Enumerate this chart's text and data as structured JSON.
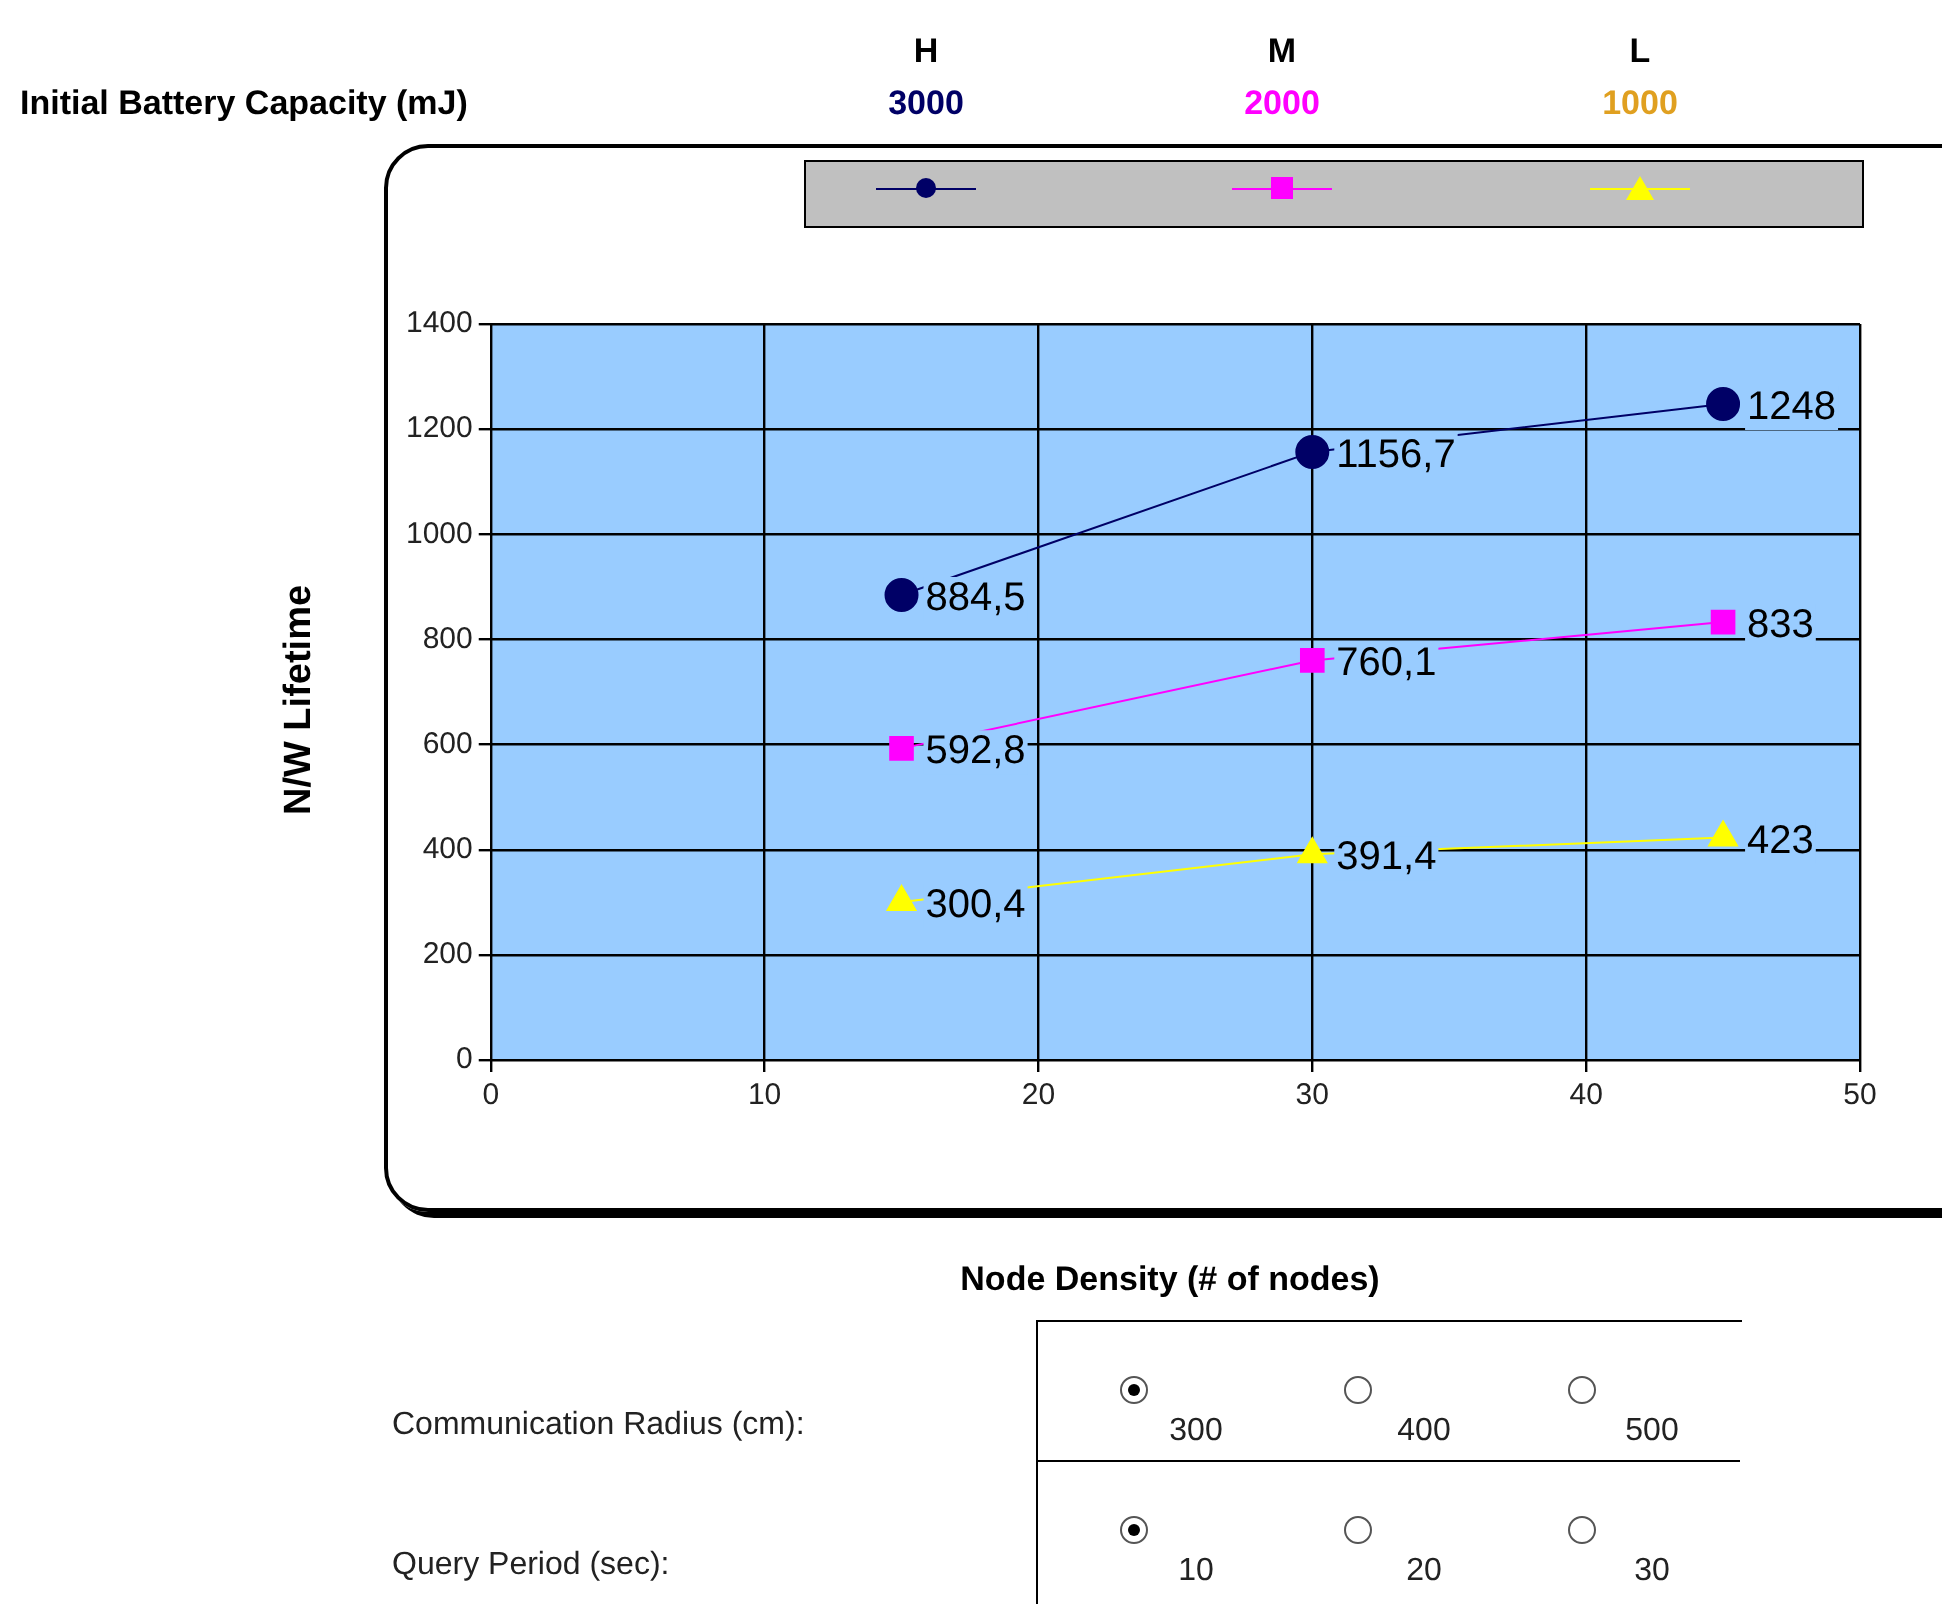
{
  "chart_data": {
    "type": "line",
    "xlabel": "Node Density (# of nodes)",
    "ylabel": "N/W Lifetime",
    "legend_title": "Initial Battery Capacity (mJ)",
    "grid": true,
    "x": [
      15,
      30,
      45
    ],
    "xlim": [
      0,
      50
    ],
    "xticks": [
      0,
      10,
      20,
      30,
      40,
      50
    ],
    "ylim": [
      0,
      1400
    ],
    "yticks": [
      0,
      200,
      400,
      600,
      800,
      1000,
      1200,
      1400
    ],
    "series": [
      {
        "color": "#000066",
        "marker": "circle",
        "values": [
          884.5,
          1156.7,
          1248
        ],
        "value_labels": [
          "884,5",
          "1156,7",
          "1248"
        ]
      },
      {
        "color": "#ff00ff",
        "marker": "square",
        "values": [
          592.8,
          760.1,
          833
        ],
        "value_labels": [
          "592,8",
          "760,1",
          "833"
        ]
      },
      {
        "color": "#ffff00",
        "marker": "triangle",
        "values": [
          300.4,
          391.4,
          423
        ],
        "value_labels": [
          "300,4",
          "391,4",
          "423"
        ]
      }
    ],
    "annotations": [
      "H",
      "M",
      "L",
      "3000",
      "2000",
      "1000",
      "Communication Radius (cm):",
      "300",
      "400",
      "500",
      "Query Period (sec):",
      "10",
      "20",
      "30"
    ]
  }
}
